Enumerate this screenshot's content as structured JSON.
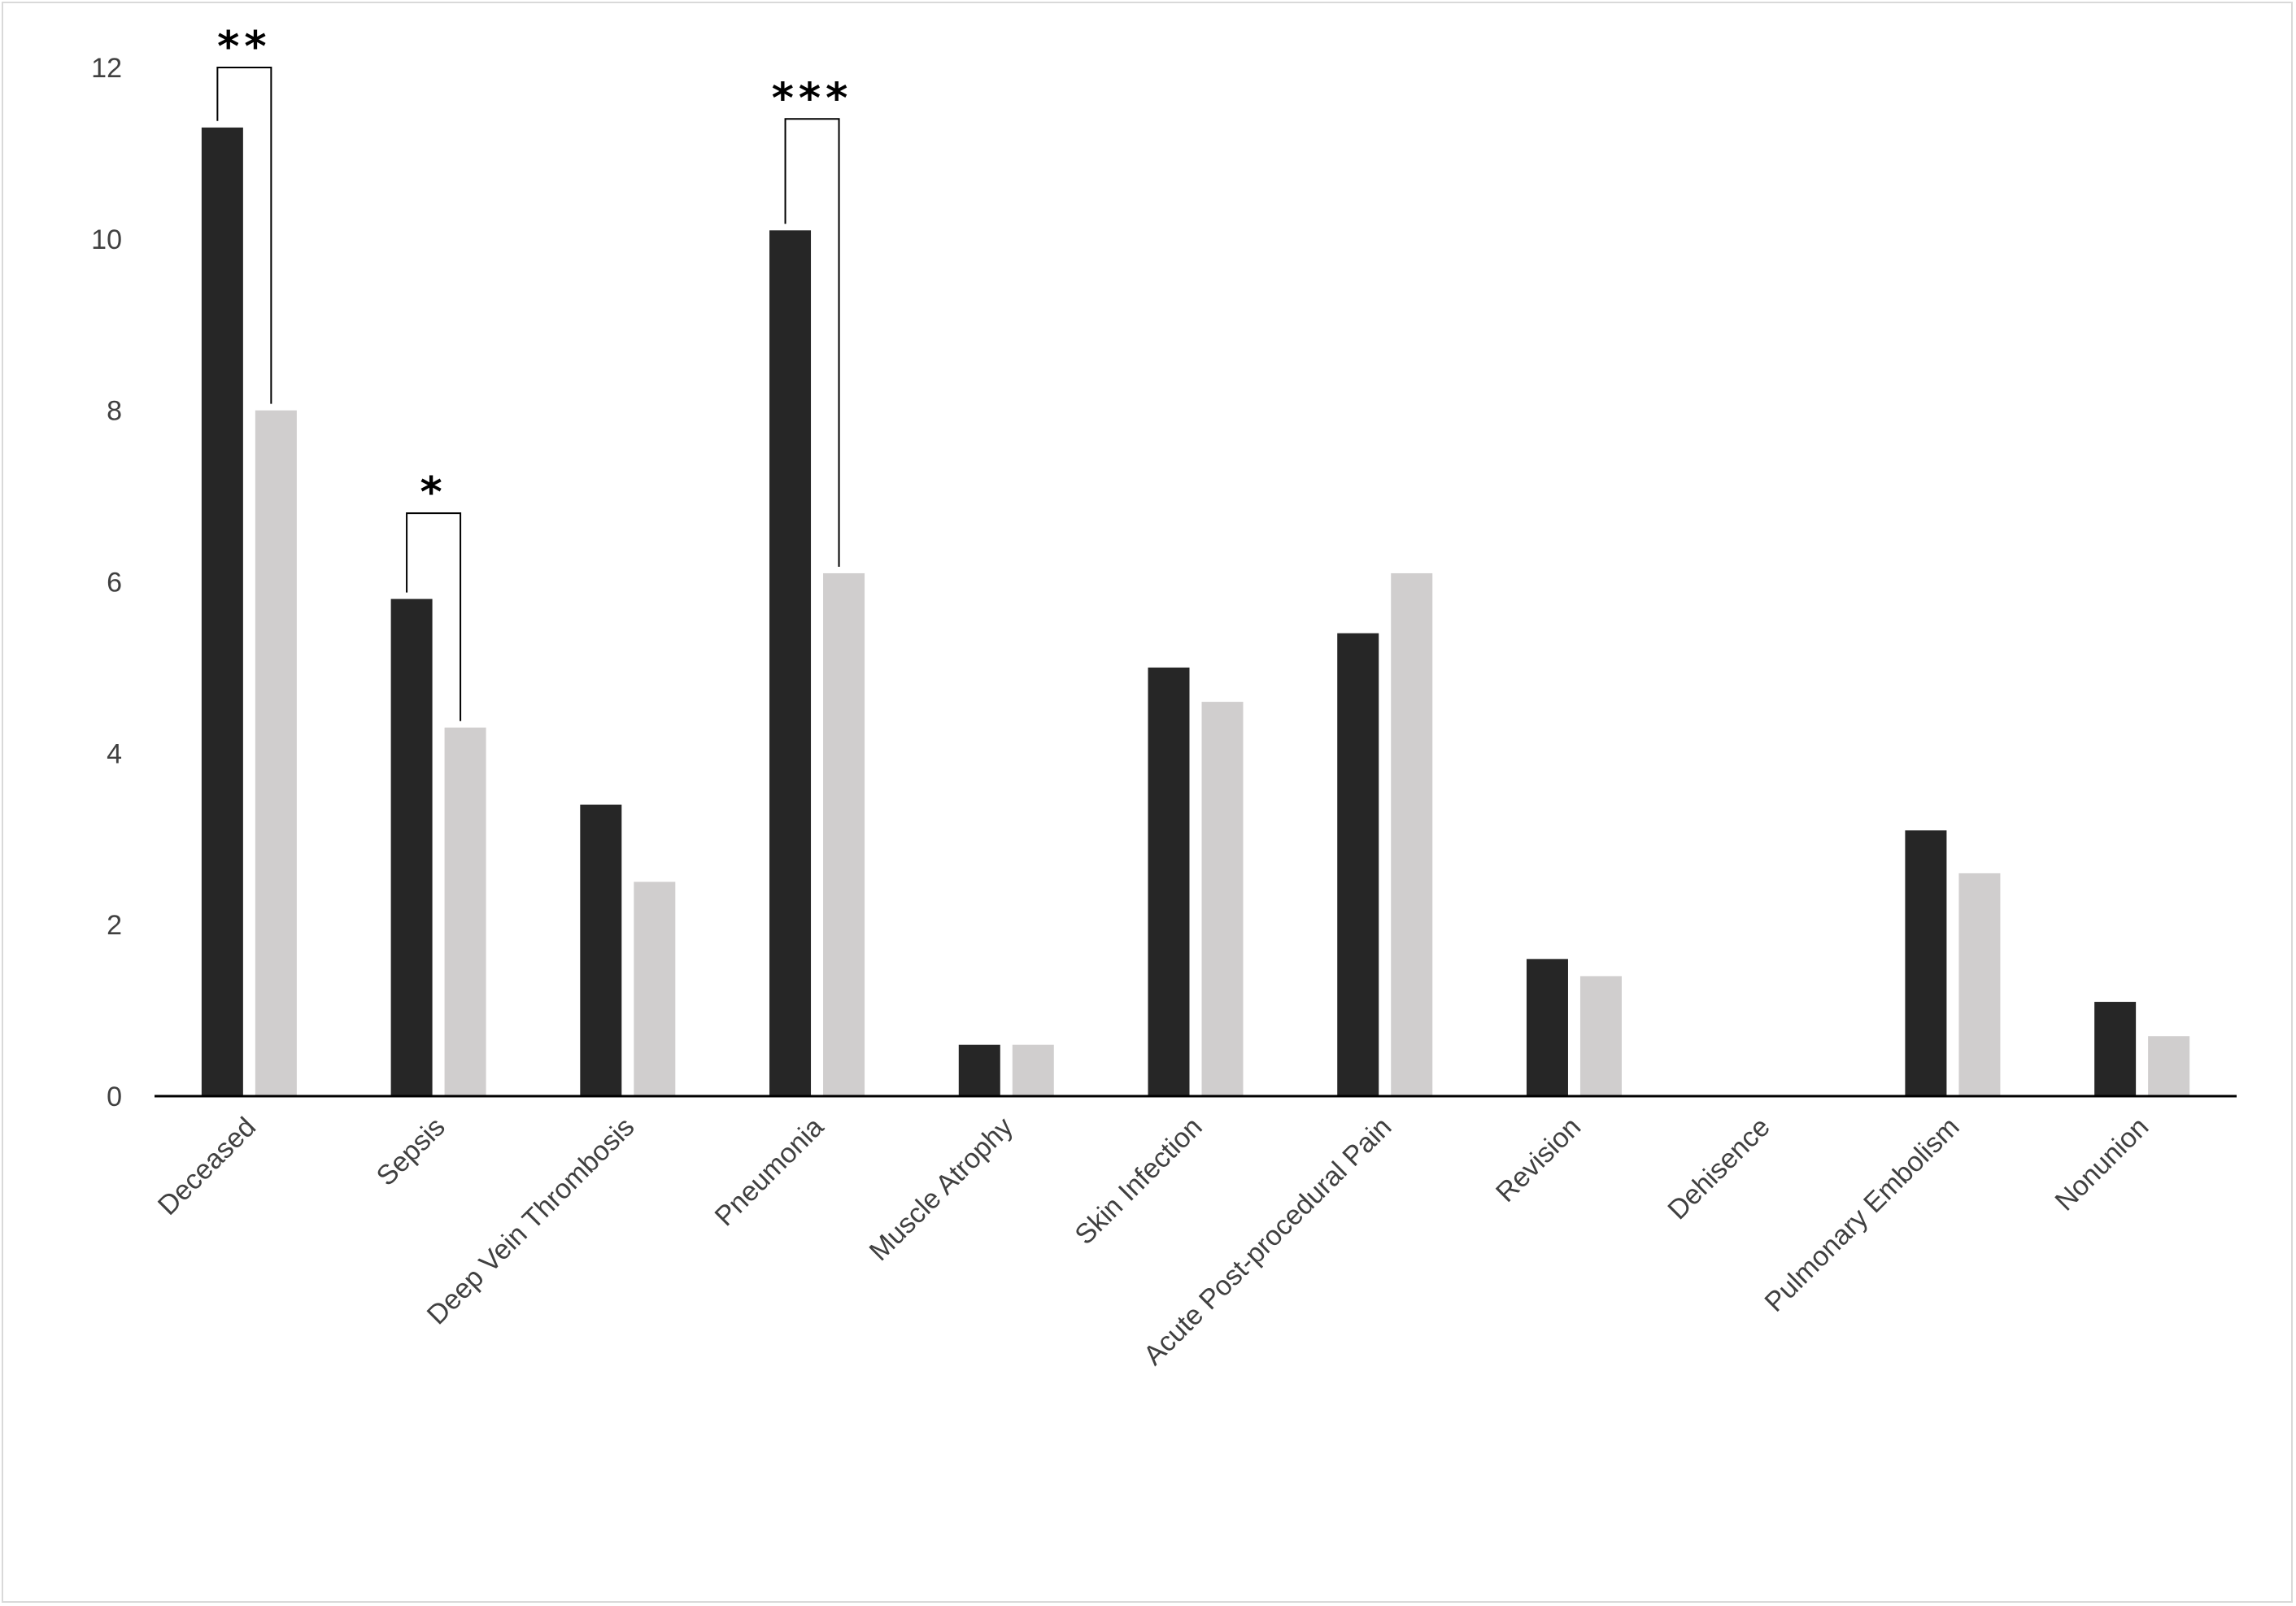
{
  "chart_data": {
    "type": "bar",
    "title": "",
    "xlabel": "",
    "ylabel": "",
    "ylim": [
      0,
      12
    ],
    "yticks": [
      0,
      2,
      4,
      6,
      8,
      10,
      12
    ],
    "ytick_labels": [
      "0",
      "2",
      "4",
      "6",
      "8",
      "10",
      "12"
    ],
    "grid": false,
    "legend": "none",
    "categories": [
      "Deceased",
      "Sepsis",
      "Deep Vein Thrombosis",
      "Pneumonia",
      "Muscle Atrophy",
      "Skin Infection",
      "Acute Post-procedural Pain",
      "Revision",
      "Dehisence",
      "Pulmonary Embolism",
      "Nonunion"
    ],
    "series": [
      {
        "color": "#262626",
        "values": [
          11.3,
          5.8,
          3.4,
          10.1,
          0.6,
          5.0,
          5.4,
          1.6,
          0.0,
          3.1,
          1.1
        ]
      },
      {
        "color": "#d0cece",
        "values": [
          8.0,
          4.3,
          2.5,
          6.1,
          0.6,
          4.6,
          6.1,
          1.4,
          0.0,
          2.6,
          0.7
        ]
      }
    ],
    "annotations": [
      {
        "category_index": 0,
        "label": "**",
        "bracket_top": 12.0
      },
      {
        "category_index": 1,
        "label": "*",
        "bracket_top": 6.8
      },
      {
        "category_index": 3,
        "label": "***",
        "bracket_top": 11.4
      }
    ],
    "axis_color": "#000000",
    "text_color": "#404040"
  }
}
